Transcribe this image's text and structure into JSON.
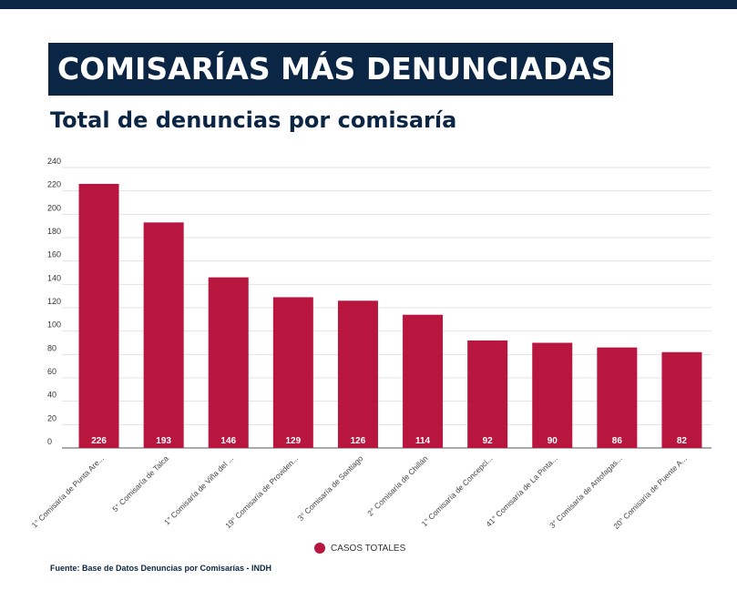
{
  "header": {
    "title": "COMISARÍAS MÁS DENUNCIADAS",
    "subtitle": "Total de denuncias por comisaría"
  },
  "colors": {
    "navy": "#0b2545",
    "bar": "#b8153f"
  },
  "chart_data": {
    "type": "bar",
    "categories": [
      "1° Comisaría de Punta Are...",
      "5° Comisaría de Talca",
      "1° Comisaría de Viña del ...",
      "19° Comisaría de Providen...",
      "3° Comisaría de Santiago",
      "2° Comisaría de Chillán",
      "1° Comisaría de Concepci...",
      "41° Comisaría de La Pinta...",
      "3° Comisaría de Antofagas...",
      "20° Comisaría de Puente A..."
    ],
    "series": [
      {
        "name": "CASOS TOTALES",
        "values": [
          226,
          193,
          146,
          129,
          126,
          114,
          92,
          90,
          86,
          82
        ]
      }
    ],
    "ylim": [
      0,
      240
    ],
    "yticks": [
      "0",
      "20",
      "40",
      "60",
      "80",
      "100",
      "120",
      "140",
      "160",
      "180",
      "200",
      "220",
      "240"
    ],
    "grid": true,
    "legend_position": "bottom-center"
  },
  "legend": {
    "label": "CASOS TOTALES"
  },
  "footer": {
    "source": "Fuente: Base de Datos Denuncias por Comisarías - INDH"
  }
}
